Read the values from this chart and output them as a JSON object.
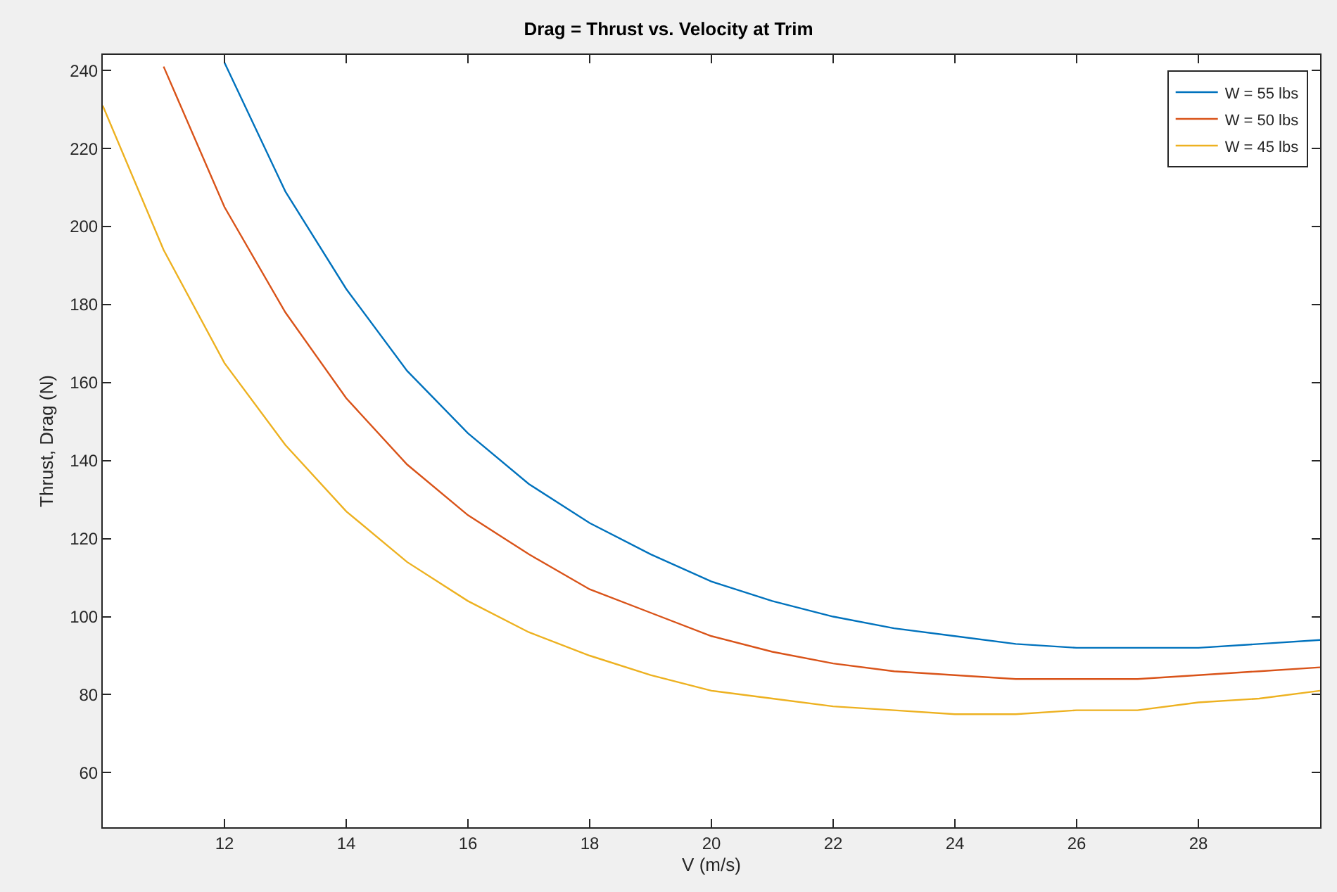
{
  "chart_data": {
    "type": "line",
    "title": "Drag = Thrust vs. Velocity at Trim",
    "xlabel": "V (m/s)",
    "ylabel": "Thrust, Drag (N)",
    "xlim": [
      10,
      30
    ],
    "xticks": [
      12,
      14,
      16,
      18,
      20,
      22,
      24,
      26,
      28
    ],
    "ylim": [
      46,
      244
    ],
    "yticks": [
      60,
      80,
      100,
      120,
      140,
      160,
      180,
      200,
      220,
      240
    ],
    "grid": false,
    "legend": "top right",
    "marker": "none",
    "line_style": "solid",
    "series": [
      {
        "name": "W = 55 lbs",
        "color": "#0072bd",
        "x": [
          12,
          13,
          14,
          15,
          16,
          17,
          18,
          19,
          20,
          21,
          22,
          23,
          24,
          25,
          26,
          27,
          28,
          29,
          30
        ],
        "values": [
          242,
          209,
          184,
          163,
          147,
          134,
          124,
          116,
          109,
          104,
          100,
          97,
          95,
          93,
          92,
          92,
          92,
          93,
          94
        ]
      },
      {
        "name": "W = 50 lbs",
        "color": "#d95319",
        "x": [
          11,
          12,
          13,
          14,
          15,
          16,
          17,
          18,
          19,
          20,
          21,
          22,
          23,
          24,
          25,
          26,
          27,
          28,
          29,
          30
        ],
        "values": [
          241,
          205,
          178,
          156,
          139,
          126,
          116,
          107,
          101,
          95,
          91,
          88,
          86,
          85,
          84,
          84,
          84,
          85,
          86,
          87
        ]
      },
      {
        "name": "W = 45 lbs",
        "color": "#edb120",
        "x": [
          10,
          11,
          12,
          13,
          14,
          15,
          16,
          17,
          18,
          19,
          20,
          21,
          22,
          23,
          24,
          25,
          26,
          27,
          28,
          29,
          30
        ],
        "values": [
          231,
          194,
          165,
          144,
          127,
          114,
          104,
          96,
          90,
          85,
          81,
          79,
          77,
          76,
          75,
          75,
          76,
          76,
          78,
          79,
          81
        ]
      }
    ]
  }
}
